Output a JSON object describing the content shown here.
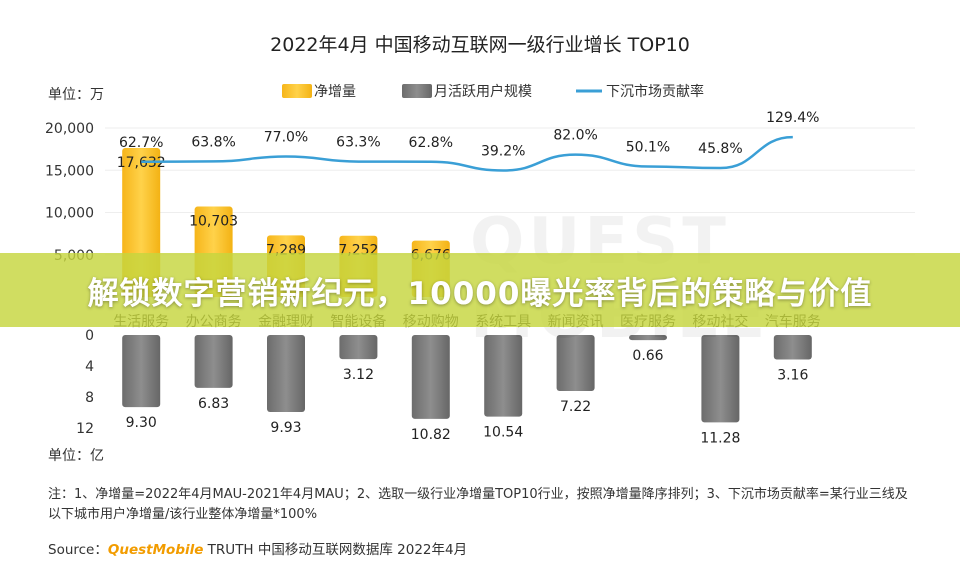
{
  "chart_data": {
    "type": "bar",
    "title": "2022年4月 中国移动互联网一级行业增长 TOP10",
    "categories": [
      "生活服务",
      "办公商务",
      "金融理财",
      "智能设备",
      "移动购物",
      "系统工具",
      "新闻资讯",
      "医疗服务",
      "移动社交",
      "汽车服务"
    ],
    "series": [
      {
        "name": "净增量",
        "unit_label": "单位：万",
        "values": [
          17632,
          10703,
          7289,
          7252,
          6676,
          null,
          null,
          null,
          null,
          null
        ],
        "labels": [
          "17,632",
          "10,703",
          "7,289",
          "7,252",
          "6,676"
        ],
        "ylim": [
          0,
          20000
        ],
        "yticks": [
          "20,000",
          "15,000",
          "10,000",
          "5,000"
        ]
      },
      {
        "name": "月活跃用户规模",
        "unit_label": "单位：亿",
        "values": [
          9.3,
          6.83,
          9.93,
          3.12,
          10.82,
          10.54,
          7.22,
          0.66,
          11.28,
          3.16
        ],
        "labels": [
          "9.30",
          "6.83",
          "9.93",
          "3.12",
          "10.82",
          "10.54",
          "7.22",
          "0.66",
          "11.28",
          "3.16"
        ],
        "yticks": [
          "0",
          "4",
          "8",
          "12"
        ],
        "ylim": [
          0,
          12
        ]
      },
      {
        "name": "下沉市场贡献率",
        "values": [
          62.7,
          63.8,
          77.0,
          63.3,
          62.8,
          39.2,
          82.0,
          50.1,
          45.8,
          129.4
        ],
        "labels": [
          "62.7%",
          "63.8%",
          "77.0%",
          "63.3%",
          "62.8%",
          "39.2%",
          "82.0%",
          "50.1%",
          "45.8%",
          "129.4%"
        ]
      }
    ],
    "legend_position": "top",
    "colors": {
      "bar_top": "#fbc12f",
      "bar_bottom": "#7a7a7a",
      "line": "#3a9fd6"
    }
  },
  "banner_text": "解锁数字营销新纪元，10000曝光率背后的策略与价值",
  "watermark": "QUEST MOBILE",
  "note": "注：1、净增量=2022年4月MAU-2021年4月MAU；2、选取一级行业净增量TOP10行业，按照净增量降序排列；3、下沉市场贡献率=某行业三线及以下城市用户净增量/该行业整体净增量*100%",
  "source": {
    "prefix": "Source：",
    "brand": "QuestMobile",
    "suffix": " TRUTH 中国移动互联网数据库 2022年4月"
  }
}
